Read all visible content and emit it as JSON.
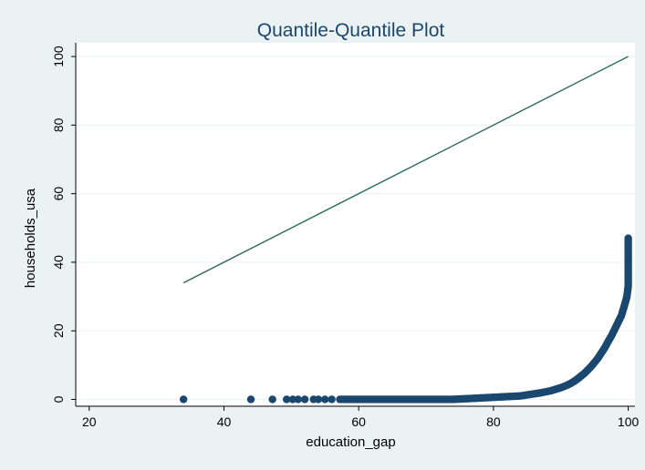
{
  "chart_data": {
    "type": "scatter",
    "title": "Quantile-Quantile Plot",
    "xlabel": "education_gap",
    "ylabel": "households_usa",
    "xlim": [
      18,
      101
    ],
    "ylim": [
      -2,
      104
    ],
    "x_ticks": [
      20,
      40,
      60,
      80,
      100
    ],
    "y_ticks": [
      0,
      20,
      40,
      60,
      80,
      100
    ],
    "grid": true,
    "reference_line": {
      "x": [
        34,
        100
      ],
      "y": [
        34,
        100
      ]
    },
    "colors": {
      "background": "#eaf2f3",
      "plot_background": "#ffffff",
      "grid": "#eaf2f3",
      "points": "#1a476f",
      "reference_line": "#2d6a5a",
      "title": "#1a476f"
    },
    "series": [
      {
        "values": [
          [
            34,
            0
          ],
          [
            44,
            0
          ],
          [
            47.2,
            0
          ],
          [
            49.3,
            0
          ],
          [
            50.2,
            0
          ],
          [
            51.0,
            0
          ],
          [
            52.0,
            0
          ],
          [
            53.3,
            0
          ],
          [
            54.0,
            0
          ],
          [
            55.0,
            0
          ],
          [
            56.0,
            0
          ],
          [
            57.2,
            0
          ],
          [
            58.0,
            0
          ],
          [
            59.0,
            0
          ],
          [
            60.0,
            0
          ],
          [
            61.0,
            0
          ],
          [
            62.0,
            0
          ],
          [
            63.0,
            0
          ],
          [
            64.0,
            0
          ],
          [
            65.0,
            0
          ],
          [
            66.0,
            0
          ],
          [
            67.0,
            0
          ],
          [
            68.0,
            0
          ],
          [
            69.0,
            0
          ],
          [
            70.0,
            0
          ],
          [
            71.0,
            0
          ],
          [
            72.0,
            0
          ],
          [
            73.0,
            0
          ],
          [
            74.0,
            0
          ],
          [
            75.0,
            0.1
          ],
          [
            76.0,
            0.2
          ],
          [
            77.0,
            0.3
          ],
          [
            78.0,
            0.4
          ],
          [
            79.0,
            0.5
          ],
          [
            80.0,
            0.6
          ],
          [
            81.0,
            0.7
          ],
          [
            82.0,
            0.8
          ],
          [
            83.0,
            0.9
          ],
          [
            84.0,
            1.0
          ],
          [
            85.0,
            1.3
          ],
          [
            86.0,
            1.6
          ],
          [
            87.0,
            1.9
          ],
          [
            88.0,
            2.3
          ],
          [
            88.5,
            2.5
          ],
          [
            89.0,
            2.8
          ],
          [
            89.5,
            3.1
          ],
          [
            90.0,
            3.4
          ],
          [
            90.5,
            3.8
          ],
          [
            91.0,
            4.2
          ],
          [
            91.5,
            4.7
          ],
          [
            92.0,
            5.3
          ],
          [
            92.5,
            6.0
          ],
          [
            93.0,
            6.8
          ],
          [
            93.5,
            7.6
          ],
          [
            94.0,
            8.6
          ],
          [
            94.5,
            9.6
          ],
          [
            95.0,
            10.8
          ],
          [
            95.5,
            12.0
          ],
          [
            96.0,
            13.5
          ],
          [
            96.5,
            15.0
          ],
          [
            97.0,
            16.8
          ],
          [
            97.5,
            18.5
          ],
          [
            98.0,
            20.5
          ],
          [
            98.5,
            22.5
          ],
          [
            99.0,
            24.5
          ],
          [
            99.3,
            26.5
          ],
          [
            99.6,
            28.5
          ],
          [
            99.8,
            30.0
          ],
          [
            99.9,
            31.5
          ],
          [
            100,
            33.0
          ],
          [
            100,
            34.5
          ],
          [
            100,
            36.5
          ],
          [
            100,
            39.0
          ],
          [
            100,
            40.5
          ],
          [
            100,
            47.0
          ]
        ]
      }
    ]
  }
}
